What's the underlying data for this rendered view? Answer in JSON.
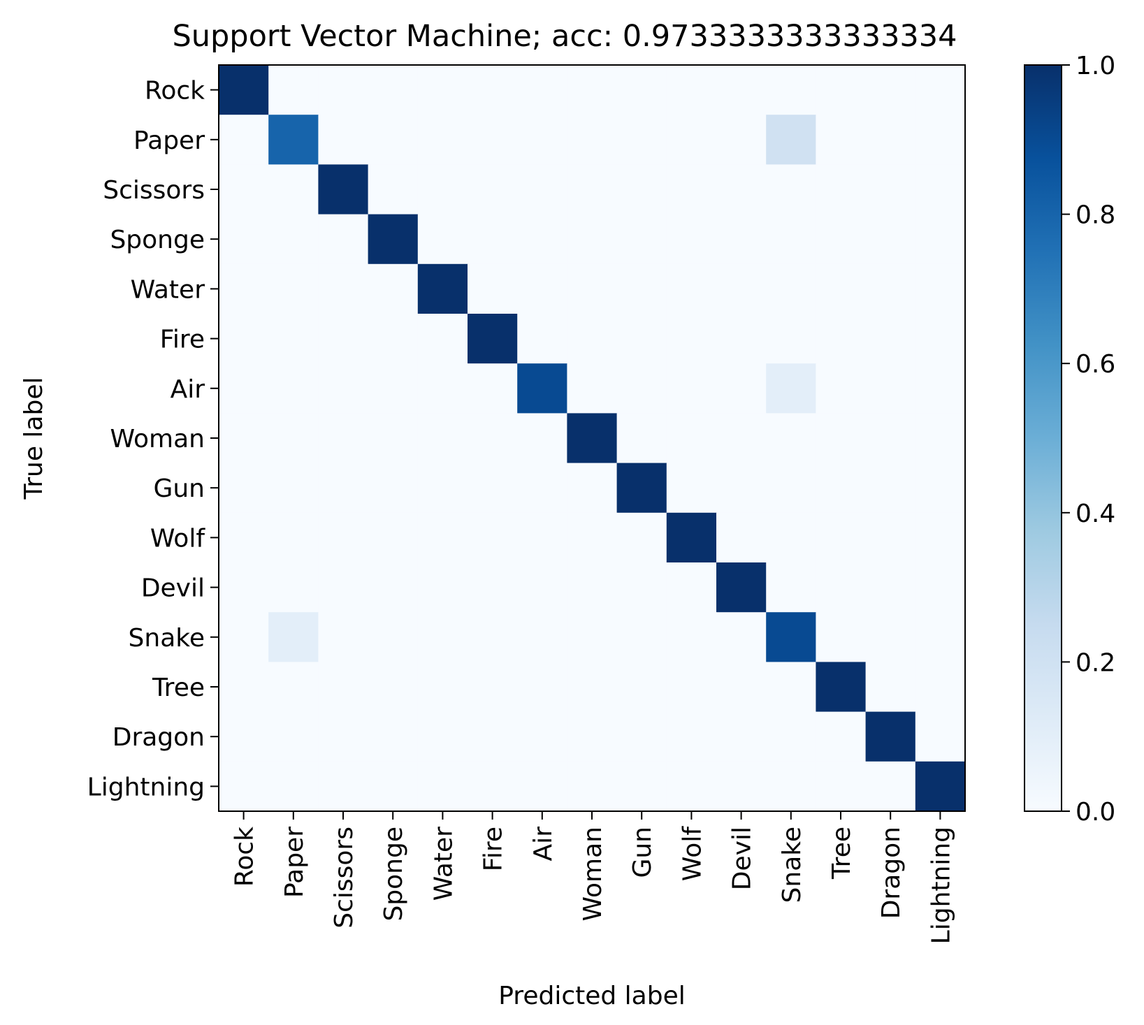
{
  "chart_data": {
    "type": "heatmap",
    "title": "Support Vector Machine; acc: 0.9733333333333334",
    "xlabel": "Predicted label",
    "ylabel": "True label",
    "x_categories": [
      "Rock",
      "Paper",
      "Scissors",
      "Sponge",
      "Water",
      "Fire",
      "Air",
      "Woman",
      "Gun",
      "Wolf",
      "Devil",
      "Snake",
      "Tree",
      "Dragon",
      "Lightning"
    ],
    "y_categories": [
      "Rock",
      "Paper",
      "Scissors",
      "Sponge",
      "Water",
      "Fire",
      "Air",
      "Woman",
      "Gun",
      "Wolf",
      "Devil",
      "Snake",
      "Tree",
      "Dragon",
      "Lightning"
    ],
    "values": [
      [
        1,
        0,
        0,
        0,
        0,
        0,
        0,
        0,
        0,
        0,
        0,
        0,
        0,
        0,
        0
      ],
      [
        0,
        0.8,
        0,
        0,
        0,
        0,
        0,
        0,
        0,
        0,
        0,
        0.2,
        0,
        0,
        0
      ],
      [
        0,
        0,
        1,
        0,
        0,
        0,
        0,
        0,
        0,
        0,
        0,
        0,
        0,
        0,
        0
      ],
      [
        0,
        0,
        0,
        1,
        0,
        0,
        0,
        0,
        0,
        0,
        0,
        0,
        0,
        0,
        0
      ],
      [
        0,
        0,
        0,
        0,
        1,
        0,
        0,
        0,
        0,
        0,
        0,
        0,
        0,
        0,
        0
      ],
      [
        0,
        0,
        0,
        0,
        0,
        1,
        0,
        0,
        0,
        0,
        0,
        0,
        0,
        0,
        0
      ],
      [
        0,
        0,
        0,
        0,
        0,
        0,
        0.9,
        0,
        0,
        0,
        0,
        0.1,
        0,
        0,
        0
      ],
      [
        0,
        0,
        0,
        0,
        0,
        0,
        0,
        1,
        0,
        0,
        0,
        0,
        0,
        0,
        0
      ],
      [
        0,
        0,
        0,
        0,
        0,
        0,
        0,
        0,
        1,
        0,
        0,
        0,
        0,
        0,
        0
      ],
      [
        0,
        0,
        0,
        0,
        0,
        0,
        0,
        0,
        0,
        1,
        0,
        0,
        0,
        0,
        0
      ],
      [
        0,
        0,
        0,
        0,
        0,
        0,
        0,
        0,
        0,
        0,
        1,
        0,
        0,
        0,
        0
      ],
      [
        0,
        0.1,
        0,
        0,
        0,
        0,
        0,
        0,
        0,
        0,
        0,
        0.9,
        0,
        0,
        0
      ],
      [
        0,
        0,
        0,
        0,
        0,
        0,
        0,
        0,
        0,
        0,
        0,
        0,
        1,
        0,
        0
      ],
      [
        0,
        0,
        0,
        0,
        0,
        0,
        0,
        0,
        0,
        0,
        0,
        0,
        0,
        1,
        0
      ],
      [
        0,
        0,
        0,
        0,
        0,
        0,
        0,
        0,
        0,
        0,
        0,
        0,
        0,
        0,
        1
      ]
    ],
    "colormap": "Blues",
    "colorbar": {
      "range": [
        0.0,
        1.0
      ],
      "ticks": [
        "0.0",
        "0.2",
        "0.4",
        "0.6",
        "0.8",
        "1.0"
      ]
    },
    "grid": false
  }
}
